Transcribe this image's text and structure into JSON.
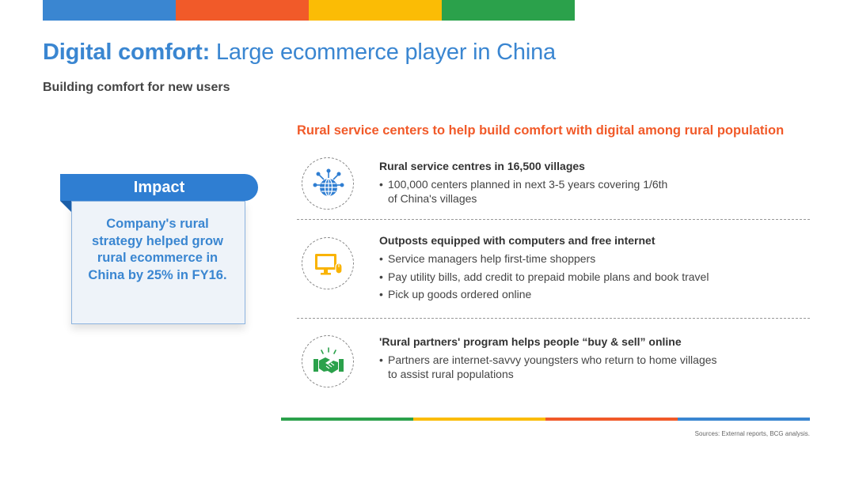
{
  "colors": {
    "blue": "#3a86d1",
    "red": "#f15a29",
    "yellow": "#fbbc05",
    "green": "#2ba14b",
    "icon_blue": "#2f7ed2",
    "icon_yellow": "#f9b300",
    "icon_green": "#2ba14b"
  },
  "header": {
    "title_bold": "Digital comfort:",
    "title_rest": " Large ecommerce player in China",
    "subtitle": "Building comfort for new users"
  },
  "impact": {
    "label": "Impact",
    "text_lines": [
      "Company's rural",
      "strategy helped grow",
      "rural ecommerce in",
      "China by 25% in FY16."
    ]
  },
  "section_title": "Rural service centers to help build comfort with digital among rural population",
  "items": [
    {
      "icon": "globe-network-icon",
      "heading": "Rural service centres in 16,500 villages",
      "bullets": [
        [
          "100,000 centers planned in next 3-5 years covering 1/6th",
          "of China's villages"
        ]
      ]
    },
    {
      "icon": "computer-icon",
      "heading": "Outposts equipped with  computers and free internet",
      "bullets": [
        [
          "Service managers help first-time shoppers"
        ],
        [
          "Pay utility bills, add credit to prepaid mobile plans and book travel"
        ],
        [
          "Pick up goods ordered online"
        ]
      ]
    },
    {
      "icon": "handshake-icon",
      "heading": "'Rural partners' program helps people “buy & sell” online",
      "bullets": [
        [
          "Partners are internet-savvy youngsters who return to home villages",
          "to assist rural populations"
        ]
      ]
    }
  ],
  "footer": {
    "sources": "Sources: External reports, BCG analysis."
  }
}
